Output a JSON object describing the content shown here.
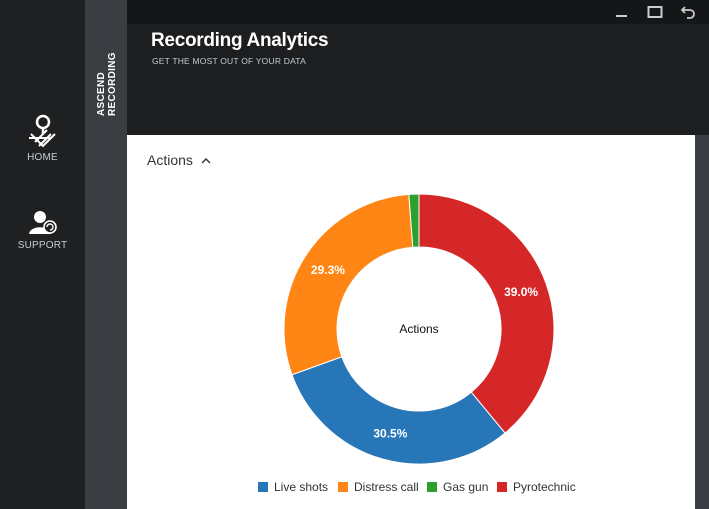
{
  "nav": {
    "items": [
      {
        "label": "HOME",
        "icon": "home-map-icon"
      },
      {
        "label": "SUPPORT",
        "icon": "support-user-icon"
      }
    ]
  },
  "brand": {
    "label": "ASCEND RECORDING"
  },
  "header": {
    "title": "Recording Analytics",
    "subtitle": "GET THE MOST OUT OF YOUR DATA"
  },
  "window_controls": [
    "minimize-icon",
    "maximize-icon",
    "back-icon"
  ],
  "section": {
    "label": "Actions"
  },
  "colors": {
    "live_shots": "#2776b8",
    "distress_call": "#ff8515",
    "gas_gun": "#2ca02c",
    "pyrotechnic": "#d62728"
  },
  "chart_data": {
    "type": "pie",
    "donut": true,
    "center_label": "Actions",
    "legend_position": "bottom",
    "categories": [
      "Live shots",
      "Distress call",
      "Gas gun",
      "Pyrotechnic"
    ],
    "values": [
      30.5,
      29.3,
      1.2,
      39.0
    ],
    "labels": [
      "30.5%",
      "29.3%",
      "",
      "39.0%"
    ],
    "colors": [
      "#2776b8",
      "#ff8515",
      "#2ca02c",
      "#d62728"
    ]
  }
}
